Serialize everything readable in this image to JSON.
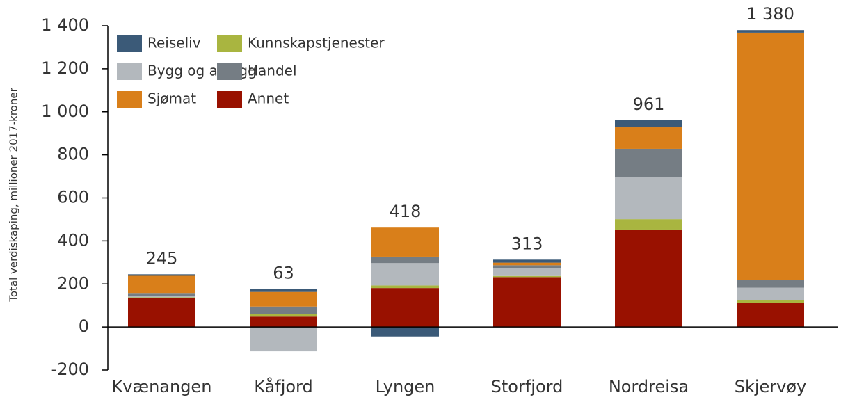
{
  "chart_data": {
    "type": "stacked_bar",
    "y_axis_label": "Total verdiskaping, millioner 2017-kroner",
    "categories": [
      "Kvænangen",
      "Kåfjord",
      "Lyngen",
      "Storfjord",
      "Nordreisa",
      "Skjervøy"
    ],
    "series": [
      {
        "name": "Annet",
        "color": "#991100",
        "values": [
          135,
          48,
          181,
          232,
          453,
          113
        ]
      },
      {
        "name": "Kunnskapstjenester",
        "color": "#a9b540",
        "values": [
          3,
          12,
          12,
          5,
          48,
          12
        ]
      },
      {
        "name": "Bygg og anlegg",
        "color": "#b3b8bd",
        "values": [
          5,
          -113,
          104,
          38,
          197,
          58
        ]
      },
      {
        "name": "Handel",
        "color": "#757d84",
        "values": [
          15,
          35,
          30,
          12,
          130,
          35
        ]
      },
      {
        "name": "Sjømat",
        "color": "#d97f1a",
        "values": [
          80,
          68,
          135,
          12,
          100,
          1150
        ]
      },
      {
        "name": "Reiseliv",
        "color": "#3b5a78",
        "values": [
          7,
          13,
          -44,
          14,
          33,
          12
        ]
      }
    ],
    "totals": [
      245,
      63,
      418,
      313,
      961,
      1380
    ],
    "total_labels": [
      "245",
      "63",
      "418",
      "313",
      "961",
      "1 380"
    ],
    "ylim": [
      -200,
      1400
    ],
    "yticks": [
      -200,
      0,
      200,
      400,
      600,
      800,
      {
        "value": 1000,
        "label": "1 000"
      },
      {
        "value": 1200,
        "label": "1 200"
      },
      {
        "value": 1400,
        "label": "1 400"
      }
    ],
    "legend_order": [
      5,
      2,
      4,
      1,
      3,
      0
    ]
  }
}
